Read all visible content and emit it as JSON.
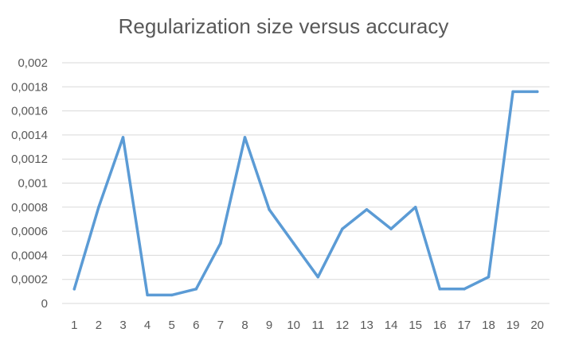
{
  "chart_data": {
    "type": "line",
    "title": "Regularization size versus accuracy",
    "xlabel": "",
    "ylabel": "",
    "categories": [
      "1",
      "2",
      "3",
      "4",
      "5",
      "6",
      "7",
      "8",
      "9",
      "10",
      "11",
      "12",
      "13",
      "14",
      "15",
      "16",
      "17",
      "18",
      "19",
      "20"
    ],
    "series": [
      {
        "values": [
          0.00012,
          0.0008,
          0.00138,
          7e-05,
          7e-05,
          0.00012,
          0.0005,
          0.00138,
          0.00078,
          0.0005,
          0.00022,
          0.00062,
          0.00078,
          0.00062,
          0.0008,
          0.00012,
          0.00012,
          0.00022,
          0.00176,
          0.00176
        ],
        "color": "#5b9bd5"
      }
    ],
    "ylim": [
      0,
      0.002
    ],
    "yticks": [
      0,
      0.0002,
      0.0004,
      0.0006,
      0.0008,
      0.001,
      0.0012,
      0.0014,
      0.0016,
      0.0018,
      0.002
    ],
    "ytick_labels": [
      "0",
      "0,0002",
      "0,0004",
      "0,0006",
      "0,0008",
      "0,001",
      "0,0012",
      "0,0014",
      "0,0016",
      "0,0018",
      "0,002"
    ],
    "grid": true,
    "gridline_color": "#d9d9d9",
    "legend": "none"
  }
}
